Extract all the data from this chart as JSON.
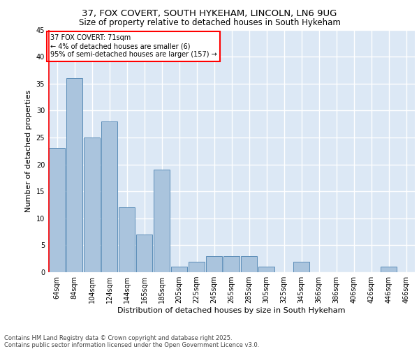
{
  "title1": "37, FOX COVERT, SOUTH HYKEHAM, LINCOLN, LN6 9UG",
  "title2": "Size of property relative to detached houses in South Hykeham",
  "xlabel": "Distribution of detached houses by size in South Hykeham",
  "ylabel": "Number of detached properties",
  "footer1": "Contains HM Land Registry data © Crown copyright and database right 2025.",
  "footer2": "Contains public sector information licensed under the Open Government Licence v3.0.",
  "categories": [
    "64sqm",
    "84sqm",
    "104sqm",
    "124sqm",
    "144sqm",
    "165sqm",
    "185sqm",
    "205sqm",
    "225sqm",
    "245sqm",
    "265sqm",
    "285sqm",
    "305sqm",
    "325sqm",
    "345sqm",
    "366sqm",
    "386sqm",
    "406sqm",
    "426sqm",
    "446sqm",
    "466sqm"
  ],
  "values": [
    23,
    36,
    25,
    28,
    12,
    7,
    19,
    1,
    2,
    3,
    3,
    3,
    1,
    0,
    2,
    0,
    0,
    0,
    0,
    1,
    0
  ],
  "bar_color": "#aac4dd",
  "bar_edge_color": "#5b8db8",
  "annotation_title": "37 FOX COVERT: 71sqm",
  "annotation_line2": "← 4% of detached houses are smaller (6)",
  "annotation_line3": "95% of semi-detached houses are larger (157) →",
  "annotation_box_color": "white",
  "annotation_box_edge": "red",
  "ylim": [
    0,
    45
  ],
  "yticks": [
    0,
    5,
    10,
    15,
    20,
    25,
    30,
    35,
    40,
    45
  ],
  "background_color": "#dce8f5",
  "grid_color": "white",
  "fig_bg": "white",
  "title1_fontsize": 9.5,
  "title2_fontsize": 8.5,
  "ylabel_fontsize": 8,
  "xlabel_fontsize": 8,
  "tick_fontsize": 7,
  "annotation_fontsize": 7,
  "footer_fontsize": 6
}
